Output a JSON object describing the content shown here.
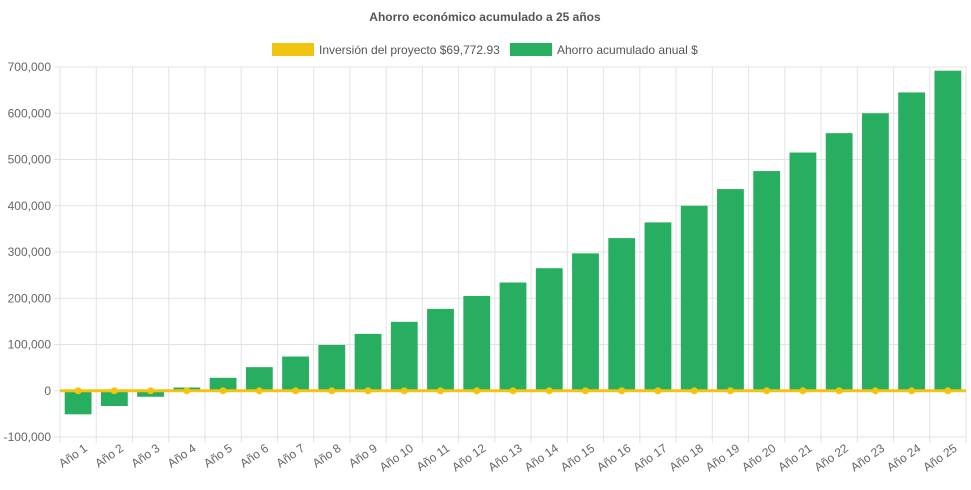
{
  "chart_data": {
    "type": "bar",
    "title": "Ahorro económico acumulado a 25 años",
    "categories": [
      "Año 1",
      "Año 2",
      "Año 3",
      "Año 4",
      "Año 5",
      "Año 6",
      "Año 7",
      "Año 8",
      "Año 9",
      "Año 10",
      "Año 11",
      "Año 12",
      "Año 13",
      "Año 14",
      "Año 15",
      "Año 16",
      "Año 17",
      "Año 18",
      "Año 19",
      "Año 20",
      "Año 21",
      "Año 22",
      "Año 23",
      "Año 24",
      "Año 25"
    ],
    "series": [
      {
        "name": "Inversión del proyecto $69,772.93",
        "type": "line",
        "color": "#f1c40f",
        "values": [
          0,
          0,
          0,
          0,
          0,
          0,
          0,
          0,
          0,
          0,
          0,
          0,
          0,
          0,
          0,
          0,
          0,
          0,
          0,
          0,
          0,
          0,
          0,
          0,
          0
        ]
      },
      {
        "name": "Ahorro acumulado anual $",
        "type": "bar",
        "color": "#27ae60",
        "values": [
          -51000,
          -33000,
          -13000,
          7000,
          28000,
          51000,
          74000,
          99000,
          123000,
          149000,
          177000,
          205000,
          234000,
          265000,
          297000,
          330000,
          364000,
          400000,
          436000,
          475000,
          515000,
          557000,
          600000,
          645000,
          692000
        ]
      }
    ],
    "yticks": [
      -100000,
      0,
      100000,
      200000,
      300000,
      400000,
      500000,
      600000,
      700000
    ],
    "ytick_labels": [
      "-100,000",
      "0",
      "100,000",
      "200,000",
      "300,000",
      "400,000",
      "500,000",
      "600,000",
      "700,000"
    ],
    "ylim": [
      -100000,
      700000
    ],
    "xlabel": "",
    "ylabel": "",
    "grid": true,
    "legend_position": "top"
  }
}
